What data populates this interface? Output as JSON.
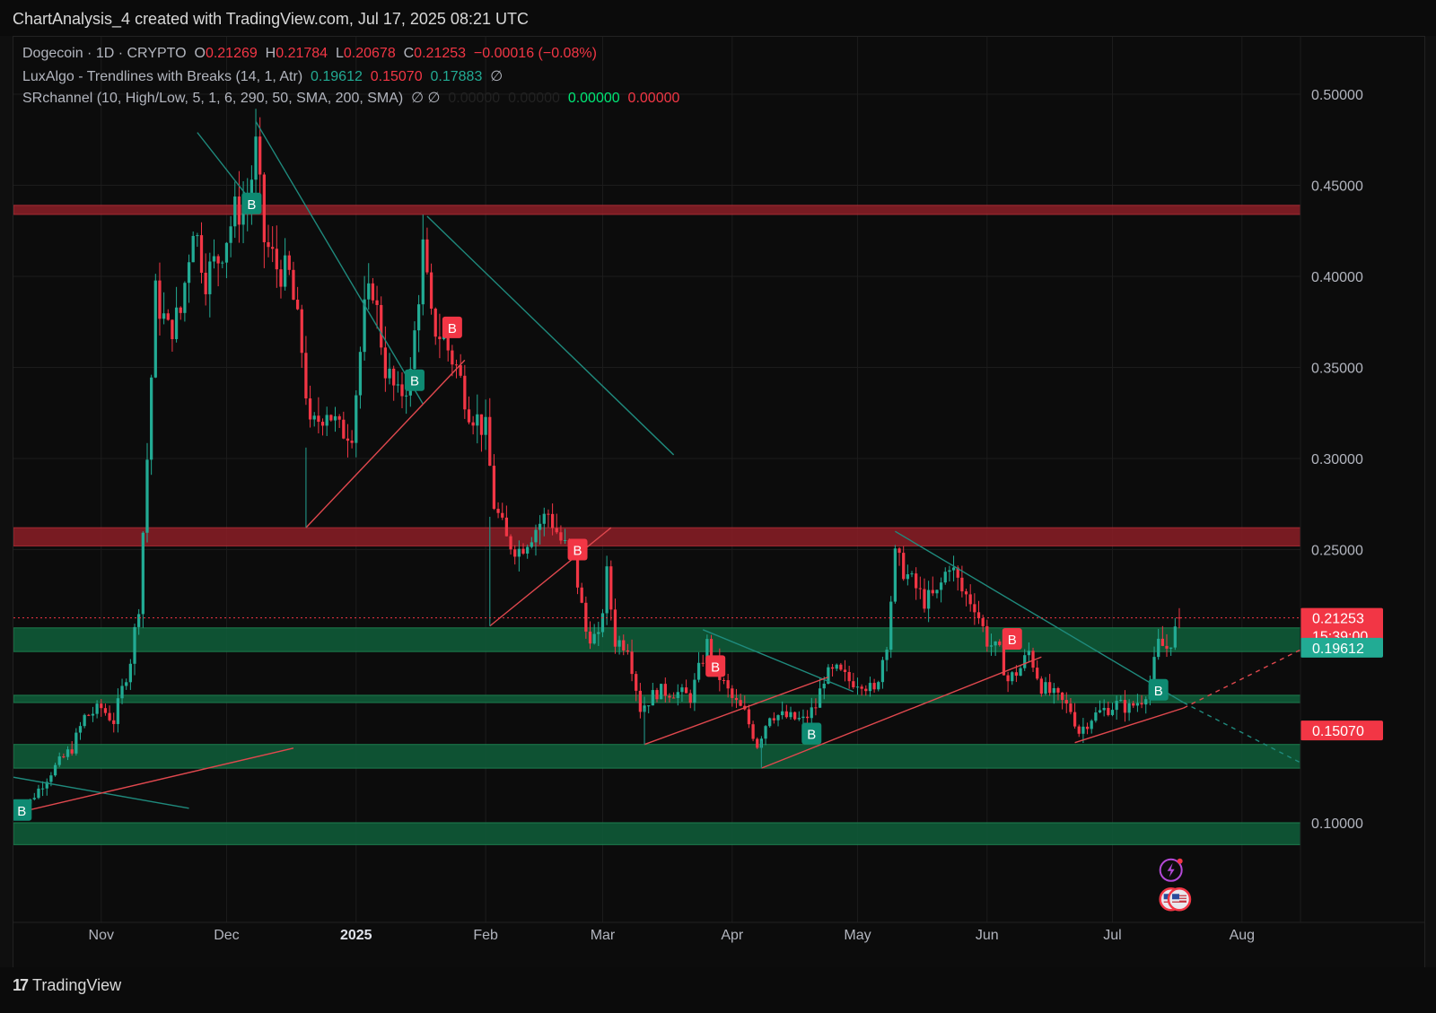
{
  "header": {
    "title": "ChartAnalysis_4 created with TradingView.com, Jul 17, 2025 08:21 UTC"
  },
  "legend": {
    "symbol": "Dogecoin · 1D · CRYPTO",
    "o_label": "O",
    "o": "0.21269",
    "h_label": "H",
    "h": "0.21784",
    "l_label": "L",
    "l": "0.20678",
    "c_label": "C",
    "c": "0.21253",
    "change": "−0.00016 (−0.08%)",
    "ind1_name": "LuxAlgo - Trendlines with Breaks (14, 1, Atr)",
    "ind1_v1": "0.19612",
    "ind1_v2": "0.15070",
    "ind1_v3": "0.17883",
    "ind1_sym": "∅",
    "ind2_name": "SRchannel (10, High/Low, 5, 1, 6, 290, 50, SMA, 200, SMA)",
    "ind2_syms": "∅ ∅",
    "ind2_v1": "0.00000",
    "ind2_v2": "0.00000",
    "ind2_v3": "0.00000",
    "ind2_v4": "0.00000"
  },
  "footer": {
    "brand": "TradingView"
  },
  "colors": {
    "bg": "#0f0f0f",
    "up": "#22ab94",
    "down": "#f23645",
    "resistance": "#8b1e26",
    "support": "#0f5a38",
    "trend_teal": "#1f8a7d",
    "trend_red": "#e0484e"
  },
  "chart_data": {
    "type": "candlestick",
    "symbol": "Dogecoin",
    "interval": "1D",
    "ylim": [
      0.05,
      0.53
    ],
    "y_ticks": [
      "0.50000",
      "0.45000",
      "0.40000",
      "0.35000",
      "0.30000",
      "0.25000",
      "0.10000"
    ],
    "x_ticks": [
      {
        "label": "Nov",
        "date": "2024-11-01"
      },
      {
        "label": "Dec",
        "date": "2024-12-01"
      },
      {
        "label": "2025",
        "date": "2025-01-01"
      },
      {
        "label": "Feb",
        "date": "2025-02-01"
      },
      {
        "label": "Mar",
        "date": "2025-03-01"
      },
      {
        "label": "Apr",
        "date": "2025-04-01"
      },
      {
        "label": "May",
        "date": "2025-05-01"
      },
      {
        "label": "Jun",
        "date": "2025-06-01"
      },
      {
        "label": "Jul",
        "date": "2025-07-01"
      },
      {
        "label": "Aug",
        "date": "2025-08-01"
      }
    ],
    "x_range": [
      "2024-10-11",
      "2025-08-15"
    ],
    "last_date": "2025-07-17",
    "last_price": 0.21253,
    "price_labels": [
      {
        "value": 0.21253,
        "text": "0.21253",
        "sub": "15:39:00",
        "color": "#f23645"
      },
      {
        "value": 0.19612,
        "text": "0.19612",
        "color": "#22ab94"
      },
      {
        "value": 0.1507,
        "text": "0.15070",
        "color": "#f23645"
      }
    ],
    "close_path": [
      [
        "2024-10-11",
        0.108
      ],
      [
        "2024-10-15",
        0.112
      ],
      [
        "2024-10-20",
        0.128
      ],
      [
        "2024-10-25",
        0.141
      ],
      [
        "2024-10-28",
        0.158
      ],
      [
        "2024-11-01",
        0.163
      ],
      [
        "2024-11-04",
        0.156
      ],
      [
        "2024-11-08",
        0.19
      ],
      [
        "2024-11-10",
        0.22
      ],
      [
        "2024-11-12",
        0.3
      ],
      [
        "2024-11-14",
        0.39
      ],
      [
        "2024-11-17",
        0.37
      ],
      [
        "2024-11-20",
        0.38
      ],
      [
        "2024-11-23",
        0.43
      ],
      [
        "2024-11-26",
        0.4
      ],
      [
        "2024-11-29",
        0.41
      ],
      [
        "2024-12-03",
        0.435
      ],
      [
        "2024-12-06",
        0.44
      ],
      [
        "2024-12-08",
        0.47
      ],
      [
        "2024-12-10",
        0.42
      ],
      [
        "2024-12-13",
        0.405
      ],
      [
        "2024-12-16",
        0.4
      ],
      [
        "2024-12-19",
        0.36
      ],
      [
        "2024-12-21",
        0.315
      ],
      [
        "2024-12-25",
        0.328
      ],
      [
        "2024-12-28",
        0.315
      ],
      [
        "2024-12-31",
        0.316
      ],
      [
        "2025-01-03",
        0.38
      ],
      [
        "2025-01-05",
        0.395
      ],
      [
        "2025-01-08",
        0.35
      ],
      [
        "2025-01-11",
        0.333
      ],
      [
        "2025-01-14",
        0.345
      ],
      [
        "2025-01-17",
        0.415
      ],
      [
        "2025-01-19",
        0.375
      ],
      [
        "2025-01-22",
        0.365
      ],
      [
        "2025-01-25",
        0.35
      ],
      [
        "2025-01-28",
        0.328
      ],
      [
        "2025-02-01",
        0.315
      ],
      [
        "2025-02-03",
        0.275
      ],
      [
        "2025-02-06",
        0.255
      ],
      [
        "2025-02-09",
        0.25
      ],
      [
        "2025-02-13",
        0.262
      ],
      [
        "2025-02-16",
        0.27
      ],
      [
        "2025-02-19",
        0.255
      ],
      [
        "2025-02-22",
        0.245
      ],
      [
        "2025-02-25",
        0.205
      ],
      [
        "2025-02-28",
        0.2
      ],
      [
        "2025-03-02",
        0.236
      ],
      [
        "2025-03-04",
        0.2
      ],
      [
        "2025-03-07",
        0.198
      ],
      [
        "2025-03-10",
        0.163
      ],
      [
        "2025-03-14",
        0.172
      ],
      [
        "2025-03-18",
        0.172
      ],
      [
        "2025-03-22",
        0.169
      ],
      [
        "2025-03-26",
        0.198
      ],
      [
        "2025-03-29",
        0.18
      ],
      [
        "2025-04-01",
        0.168
      ],
      [
        "2025-04-04",
        0.16
      ],
      [
        "2025-04-07",
        0.143
      ],
      [
        "2025-04-10",
        0.16
      ],
      [
        "2025-04-14",
        0.158
      ],
      [
        "2025-04-18",
        0.156
      ],
      [
        "2025-04-21",
        0.164
      ],
      [
        "2025-04-23",
        0.18
      ],
      [
        "2025-04-26",
        0.183
      ],
      [
        "2025-04-29",
        0.178
      ],
      [
        "2025-05-02",
        0.178
      ],
      [
        "2025-05-05",
        0.171
      ],
      [
        "2025-05-08",
        0.2
      ],
      [
        "2025-05-10",
        0.246
      ],
      [
        "2025-05-14",
        0.232
      ],
      [
        "2025-05-17",
        0.222
      ],
      [
        "2025-05-20",
        0.225
      ],
      [
        "2025-05-23",
        0.243
      ],
      [
        "2025-05-26",
        0.227
      ],
      [
        "2025-05-29",
        0.22
      ],
      [
        "2025-06-01",
        0.2
      ],
      [
        "2025-06-04",
        0.193
      ],
      [
        "2025-06-06",
        0.178
      ],
      [
        "2025-06-09",
        0.185
      ],
      [
        "2025-06-11",
        0.194
      ],
      [
        "2025-06-14",
        0.175
      ],
      [
        "2025-06-18",
        0.168
      ],
      [
        "2025-06-21",
        0.162
      ],
      [
        "2025-06-23",
        0.15
      ],
      [
        "2025-06-26",
        0.158
      ],
      [
        "2025-06-29",
        0.162
      ],
      [
        "2025-07-02",
        0.165
      ],
      [
        "2025-07-05",
        0.163
      ],
      [
        "2025-07-08",
        0.168
      ],
      [
        "2025-07-10",
        0.176
      ],
      [
        "2025-07-12",
        0.198
      ],
      [
        "2025-07-14",
        0.196
      ],
      [
        "2025-07-16",
        0.205
      ],
      [
        "2025-07-17",
        0.21253
      ]
    ],
    "resistance_zones": [
      [
        0.434,
        0.439
      ],
      [
        0.252,
        0.262
      ]
    ],
    "support_zones": [
      [
        0.194,
        0.207
      ],
      [
        0.166,
        0.17
      ],
      [
        0.13,
        0.143
      ],
      [
        0.088,
        0.1
      ]
    ],
    "trendlines": [
      {
        "color": "teal",
        "from": [
          "2024-11-24",
          0.479
        ],
        "to": [
          "2024-12-08",
          0.438
        ]
      },
      {
        "color": "teal",
        "from": [
          "2024-12-08",
          0.485
        ],
        "to": [
          "2025-01-17",
          0.33
        ]
      },
      {
        "color": "teal",
        "from": [
          "2025-01-18",
          0.433
        ],
        "to": [
          "2025-03-18",
          0.302
        ]
      },
      {
        "color": "teal",
        "from": [
          "2024-10-11",
          0.125
        ],
        "to": [
          "2024-11-22",
          0.108
        ]
      },
      {
        "color": "teal",
        "from": [
          "2025-03-25",
          0.206
        ],
        "to": [
          "2025-04-30",
          0.172
        ]
      },
      {
        "color": "teal",
        "from": [
          "2025-05-10",
          0.26
        ],
        "to": [
          "2025-07-18",
          0.166
        ]
      },
      {
        "color": "teal",
        "from": [
          "2025-07-18",
          0.166
        ],
        "to": [
          "2025-08-15",
          0.133
        ],
        "dashed": true
      },
      {
        "color": "red",
        "from": [
          "2024-10-11",
          0.105
        ],
        "to": [
          "2024-12-17",
          0.141
        ]
      },
      {
        "color": "red",
        "from": [
          "2024-12-20",
          0.262
        ],
        "to": [
          "2025-01-27",
          0.354
        ]
      },
      {
        "color": "red",
        "from": [
          "2025-02-02",
          0.208
        ],
        "to": [
          "2025-03-03",
          0.262
        ]
      },
      {
        "color": "red",
        "from": [
          "2025-03-11",
          0.143
        ],
        "to": [
          "2025-04-24",
          0.18
        ]
      },
      {
        "color": "red",
        "from": [
          "2025-04-08",
          0.13
        ],
        "to": [
          "2025-06-14",
          0.191
        ]
      },
      {
        "color": "red",
        "from": [
          "2025-06-22",
          0.144
        ],
        "to": [
          "2025-07-18",
          0.163
        ]
      },
      {
        "color": "red",
        "from": [
          "2025-07-18",
          0.163
        ],
        "to": [
          "2025-08-15",
          0.195
        ],
        "dashed": true
      }
    ],
    "vertical_lines": [
      {
        "date": "2024-12-20",
        "from": 0.262,
        "to": 0.306
      },
      {
        "date": "2025-02-02",
        "from": 0.208,
        "to": 0.268
      },
      {
        "date": "2025-03-11",
        "from": 0.143,
        "to": 0.163
      },
      {
        "date": "2025-04-08",
        "from": 0.13,
        "to": 0.145
      }
    ],
    "signals": [
      {
        "date": "2024-10-13",
        "price": 0.107,
        "type": "buy",
        "label": "B"
      },
      {
        "date": "2024-12-07",
        "price": 0.44,
        "type": "buy",
        "label": "B"
      },
      {
        "date": "2025-01-15",
        "price": 0.343,
        "type": "buy",
        "label": "B"
      },
      {
        "date": "2025-01-24",
        "price": 0.372,
        "type": "sell",
        "label": "B"
      },
      {
        "date": "2025-02-23",
        "price": 0.25,
        "type": "sell",
        "label": "B"
      },
      {
        "date": "2025-03-28",
        "price": 0.186,
        "type": "sell",
        "label": "B"
      },
      {
        "date": "2025-04-20",
        "price": 0.149,
        "type": "buy",
        "label": "B"
      },
      {
        "date": "2025-06-07",
        "price": 0.201,
        "type": "sell",
        "label": "B"
      },
      {
        "date": "2025-07-12",
        "price": 0.173,
        "type": "buy",
        "label": "B"
      }
    ],
    "event_icons": [
      {
        "date": "2025-07-15",
        "price": 0.074,
        "name": "lightning-icon"
      },
      {
        "date": "2025-07-15",
        "price": 0.058,
        "name": "us-flag-icon"
      },
      {
        "date": "2025-07-17",
        "price": 0.058,
        "name": "us-flag-icon"
      }
    ]
  }
}
